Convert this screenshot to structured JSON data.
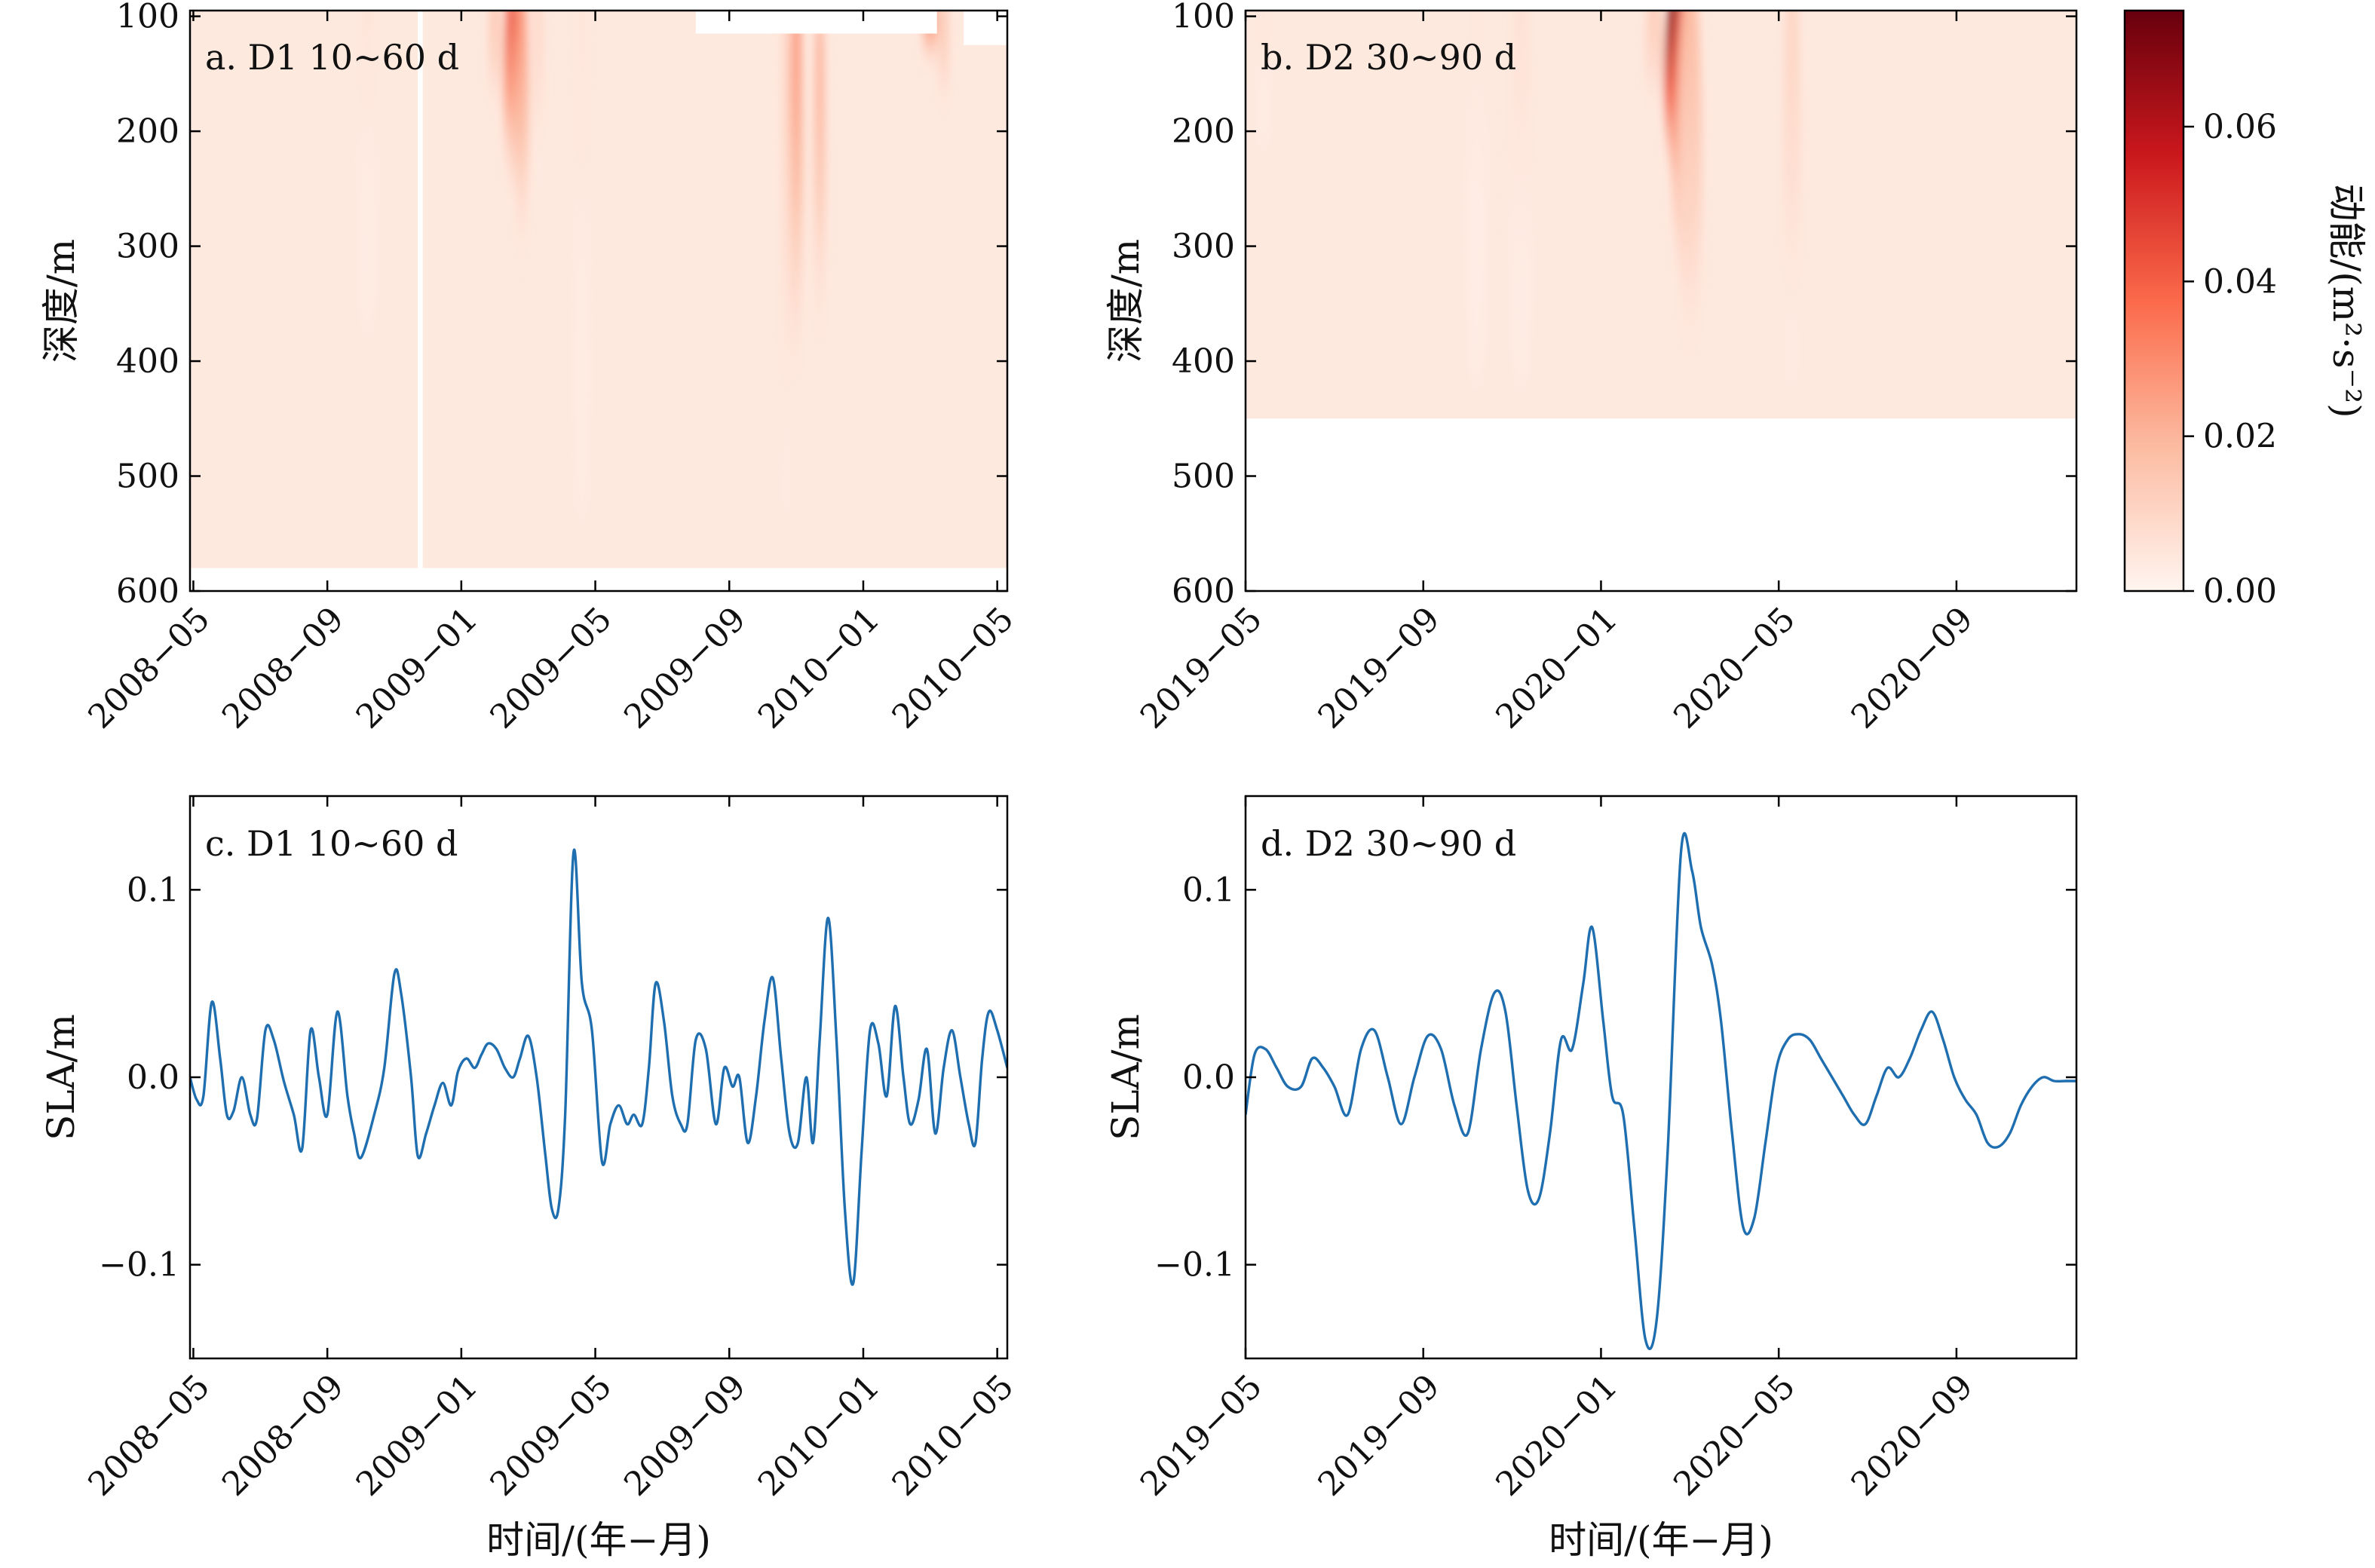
{
  "figure": {
    "xlabel": "时间/(年−月)",
    "colorbar": {
      "label": "动能/(m²·s⁻²)",
      "ticks": [
        "0.00",
        "0.02",
        "0.04",
        "0.06"
      ],
      "tick_values": [
        0.0,
        0.02,
        0.04,
        0.06
      ],
      "range": [
        0,
        0.075
      ],
      "colormap": "Reds",
      "colors": [
        "#fff5f0",
        "#fcbba1",
        "#fb6a4a",
        "#cb181d",
        "#67000d"
      ]
    }
  },
  "chart_data": [
    {
      "id": "a",
      "type": "heatmap",
      "panel_label": "a. D1 10~60 d",
      "xlabel": "",
      "ylabel": "深度/m",
      "x_ticks": [
        "2008−05",
        "2008−09",
        "2009−01",
        "2009−05",
        "2009−09",
        "2010−01",
        "2010−05"
      ],
      "x_tick_months": [
        4,
        8,
        12,
        16,
        20,
        24,
        28
      ],
      "x_range_months": [
        3.9,
        28.3
      ],
      "y_ticks": [
        "100",
        "200",
        "300",
        "400",
        "500",
        "600"
      ],
      "y_tick_values": [
        100,
        200,
        300,
        400,
        500,
        600
      ],
      "ylim": [
        600,
        95
      ],
      "data_max_depth": 580,
      "hotspots": [
        {
          "month": 13.5,
          "energy": 0.045,
          "width": 0.45,
          "from_depth": 95,
          "to_depth": 260
        },
        {
          "month": 13.8,
          "energy": 0.03,
          "width": 0.4,
          "from_depth": 95,
          "to_depth": 330
        },
        {
          "month": 13.0,
          "energy": 0.018,
          "width": 0.35,
          "from_depth": 95,
          "to_depth": 200
        },
        {
          "month": 14.3,
          "energy": 0.012,
          "width": 0.3,
          "from_depth": 95,
          "to_depth": 260
        },
        {
          "month": 22.0,
          "energy": 0.032,
          "width": 0.35,
          "from_depth": 95,
          "to_depth": 450
        },
        {
          "month": 22.7,
          "energy": 0.025,
          "width": 0.3,
          "from_depth": 120,
          "to_depth": 420
        },
        {
          "month": 21.7,
          "energy": 0.012,
          "width": 0.3,
          "from_depth": 95,
          "to_depth": 580
        },
        {
          "month": 26.0,
          "energy": 0.04,
          "width": 0.4,
          "from_depth": 95,
          "to_depth": 140
        },
        {
          "month": 26.4,
          "energy": 0.018,
          "width": 0.3,
          "from_depth": 95,
          "to_depth": 200
        },
        {
          "month": 9.2,
          "energy": 0.006,
          "width": 0.5,
          "from_depth": 95,
          "to_depth": 400
        },
        {
          "month": 15.6,
          "energy": 0.006,
          "width": 0.4,
          "from_depth": 95,
          "to_depth": 580
        }
      ],
      "white_gaps": [
        {
          "from_month": 19.0,
          "to_month": 26.2,
          "from_depth": 95,
          "to_depth": 115
        },
        {
          "from_month": 27.0,
          "to_month": 28.3,
          "from_depth": 95,
          "to_depth": 125
        },
        {
          "from_month": 10.7,
          "to_month": 10.85,
          "from_depth": 95,
          "to_depth": 580
        }
      ]
    },
    {
      "id": "b",
      "type": "heatmap",
      "panel_label": "b. D2 30~90 d",
      "xlabel": "",
      "ylabel": "深度/m",
      "x_ticks": [
        "2019−05",
        "2019−09",
        "2020−01",
        "2020−05",
        "2020−09"
      ],
      "x_tick_months": [
        4,
        8,
        12,
        16,
        20
      ],
      "x_range_months": [
        4.0,
        22.7
      ],
      "y_ticks": [
        "100",
        "200",
        "300",
        "400",
        "500",
        "600"
      ],
      "y_tick_values": [
        100,
        200,
        300,
        400,
        500,
        600
      ],
      "ylim": [
        600,
        95
      ],
      "data_max_depth": 450,
      "hotspots": [
        {
          "month": 13.7,
          "energy": 0.075,
          "width": 0.55,
          "from_depth": 95,
          "to_depth": 250
        },
        {
          "month": 13.9,
          "energy": 0.045,
          "width": 0.6,
          "from_depth": 95,
          "to_depth": 360
        },
        {
          "month": 14.0,
          "energy": 0.02,
          "width": 0.55,
          "from_depth": 95,
          "to_depth": 450
        },
        {
          "month": 13.2,
          "energy": 0.015,
          "width": 0.4,
          "from_depth": 95,
          "to_depth": 200
        },
        {
          "month": 16.3,
          "energy": 0.012,
          "width": 0.4,
          "from_depth": 95,
          "to_depth": 450
        },
        {
          "month": 10.2,
          "energy": 0.007,
          "width": 0.5,
          "from_depth": 95,
          "to_depth": 450
        },
        {
          "month": 9.2,
          "energy": 0.005,
          "width": 0.4,
          "from_depth": 95,
          "to_depth": 450
        },
        {
          "month": 4.4,
          "energy": 0.006,
          "width": 0.25,
          "from_depth": 95,
          "to_depth": 220
        }
      ],
      "white_gaps": []
    },
    {
      "id": "c",
      "type": "line",
      "panel_label": "c. D1 10~60 d",
      "xlabel": "时间/(年−月)",
      "ylabel": "SLA/m",
      "x_ticks": [
        "2008−05",
        "2008−09",
        "2009−01",
        "2009−05",
        "2009−09",
        "2010−01",
        "2010−05"
      ],
      "x_tick_months": [
        4,
        8,
        12,
        16,
        20,
        24,
        28
      ],
      "x_range_months": [
        3.9,
        28.3
      ],
      "y_ticks": [
        "−0.1",
        "0.0",
        "0.1"
      ],
      "y_tick_values": [
        -0.1,
        0.0,
        0.1
      ],
      "ylim": [
        -0.15,
        0.15
      ],
      "line_color": "#1f6fb0",
      "series": [
        {
          "x": [
            3.9,
            4.1,
            4.3,
            4.55,
            4.8,
            5.0,
            5.2,
            5.45,
            5.7,
            5.9,
            6.15,
            6.4,
            6.7,
            7.0,
            7.25,
            7.5,
            7.75,
            8.0,
            8.3,
            8.6,
            8.8,
            9.0,
            9.4,
            9.7,
            10.0,
            10.2,
            10.5,
            10.7,
            10.95,
            11.2,
            11.45,
            11.7,
            11.9,
            12.15,
            12.4,
            12.6,
            12.8,
            13.05,
            13.3,
            13.55,
            13.75,
            14.0,
            14.25,
            14.5,
            14.7,
            14.9,
            15.1,
            15.35,
            15.6,
            15.9,
            16.2,
            16.45,
            16.7,
            16.95,
            17.15,
            17.4,
            17.6,
            17.8,
            18.05,
            18.3,
            18.55,
            18.75,
            19.0,
            19.3,
            19.6,
            19.85,
            20.1,
            20.3,
            20.55,
            20.8,
            21.05,
            21.3,
            21.55,
            21.8,
            22.05,
            22.3,
            22.5,
            22.7,
            22.95,
            23.2,
            23.45,
            23.7,
            23.95,
            24.2,
            24.45,
            24.7,
            24.95,
            25.2,
            25.4,
            25.65,
            25.9,
            26.15,
            26.4,
            26.65,
            26.9,
            27.15,
            27.35,
            27.55,
            27.75,
            28.0,
            28.3
          ],
          "y": [
            0.0,
            -0.012,
            -0.01,
            0.04,
            0.01,
            -0.02,
            -0.018,
            0.0,
            -0.02,
            -0.022,
            0.025,
            0.02,
            -0.002,
            -0.02,
            -0.038,
            0.025,
            0.0,
            -0.02,
            0.035,
            -0.01,
            -0.03,
            -0.043,
            -0.02,
            0.005,
            0.055,
            0.045,
            0.0,
            -0.042,
            -0.03,
            -0.015,
            -0.003,
            -0.015,
            0.003,
            0.01,
            0.005,
            0.012,
            0.018,
            0.015,
            0.005,
            0.0,
            0.01,
            0.022,
            0.0,
            -0.04,
            -0.07,
            -0.07,
            -0.02,
            0.12,
            0.05,
            0.025,
            -0.045,
            -0.025,
            -0.015,
            -0.025,
            -0.02,
            -0.025,
            0.005,
            0.05,
            0.03,
            -0.01,
            -0.025,
            -0.025,
            0.02,
            0.015,
            -0.025,
            0.005,
            -0.005,
            0.0,
            -0.035,
            -0.01,
            0.03,
            0.053,
            0.01,
            -0.03,
            -0.035,
            0.0,
            -0.035,
            0.02,
            0.085,
            0.02,
            -0.07,
            -0.11,
            -0.04,
            0.025,
            0.018,
            -0.01,
            0.038,
            0.0,
            -0.025,
            -0.012,
            0.015,
            -0.03,
            0.005,
            0.025,
            0.0,
            -0.025,
            -0.035,
            0.01,
            0.035,
            0.025,
            0.005
          ]
        }
      ]
    },
    {
      "id": "d",
      "type": "line",
      "panel_label": "d. D2 30~90 d",
      "xlabel": "时间/(年−月)",
      "ylabel": "SLA/m",
      "x_ticks": [
        "2019−05",
        "2019−09",
        "2020−01",
        "2020−05",
        "2020−09"
      ],
      "x_tick_months": [
        4,
        8,
        12,
        16,
        20
      ],
      "x_range_months": [
        4.0,
        22.7
      ],
      "y_ticks": [
        "−0.1",
        "0.0",
        "0.1"
      ],
      "y_tick_values": [
        -0.1,
        0.0,
        0.1
      ],
      "ylim": [
        -0.15,
        0.15
      ],
      "line_color": "#1f6fb0",
      "series": [
        {
          "x": [
            4.0,
            4.2,
            4.45,
            4.7,
            4.95,
            5.25,
            5.5,
            5.75,
            6.0,
            6.3,
            6.6,
            6.9,
            7.2,
            7.5,
            7.8,
            8.1,
            8.4,
            8.7,
            9.0,
            9.3,
            9.6,
            9.85,
            10.1,
            10.35,
            10.6,
            10.85,
            11.1,
            11.35,
            11.6,
            11.8,
            12.05,
            12.25,
            12.5,
            12.75,
            13.0,
            13.25,
            13.5,
            13.8,
            14.05,
            14.25,
            14.5,
            14.7,
            14.95,
            15.2,
            15.45,
            15.7,
            15.95,
            16.2,
            16.45,
            16.7,
            16.95,
            17.2,
            17.45,
            17.7,
            17.95,
            18.2,
            18.45,
            18.7,
            18.95,
            19.2,
            19.45,
            19.7,
            19.95,
            20.2,
            20.45,
            20.7,
            20.95,
            21.2,
            21.45,
            21.7,
            21.95,
            22.2,
            22.45,
            22.7
          ],
          "y": [
            -0.02,
            0.012,
            0.015,
            0.005,
            -0.005,
            -0.005,
            0.01,
            0.005,
            -0.005,
            -0.02,
            0.015,
            0.025,
            0.0,
            -0.025,
            0.0,
            0.022,
            0.015,
            -0.015,
            -0.03,
            0.015,
            0.045,
            0.035,
            -0.015,
            -0.06,
            -0.065,
            -0.03,
            0.02,
            0.015,
            0.05,
            0.08,
            0.03,
            -0.01,
            -0.02,
            -0.08,
            -0.14,
            -0.13,
            -0.04,
            0.12,
            0.11,
            0.08,
            0.06,
            0.03,
            -0.03,
            -0.08,
            -0.075,
            -0.035,
            0.005,
            0.02,
            0.023,
            0.02,
            0.01,
            0.0,
            -0.01,
            -0.02,
            -0.025,
            -0.01,
            0.005,
            0.0,
            0.01,
            0.025,
            0.035,
            0.02,
            0.0,
            -0.012,
            -0.02,
            -0.035,
            -0.037,
            -0.03,
            -0.015,
            -0.005,
            0.0,
            -0.002,
            -0.002,
            -0.002
          ]
        }
      ]
    }
  ]
}
